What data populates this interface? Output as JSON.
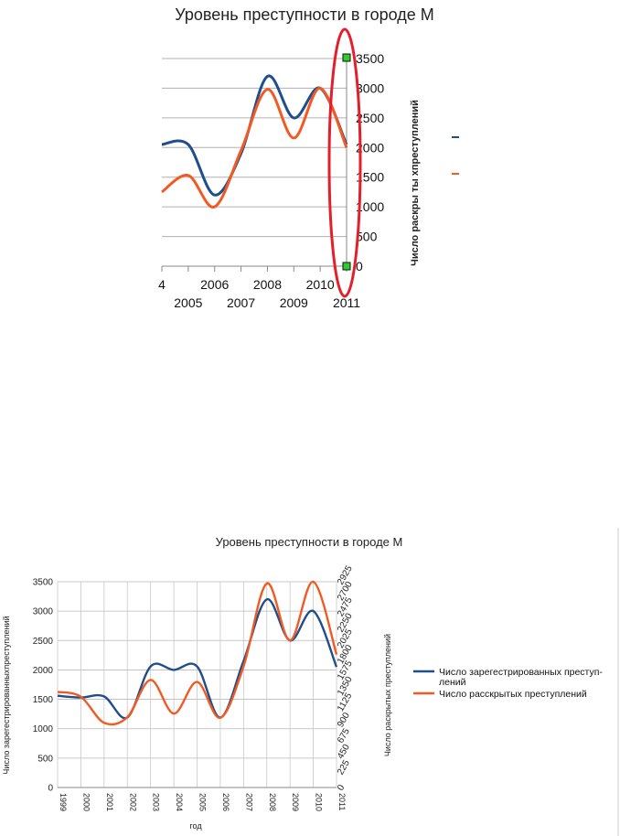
{
  "chart_data": [
    {
      "type": "line",
      "title": "Уровень преступности в городе М",
      "ylabel_right": "Число раскры ты хпреступлений",
      "ylim": [
        0,
        3500
      ],
      "yticks": [
        0,
        500,
        1000,
        1500,
        2000,
        2500,
        3000,
        3500
      ],
      "xticks_upper": [
        "4",
        "2006",
        "2008",
        "2010"
      ],
      "xticks_lower": [
        "2005",
        "2007",
        "2009",
        "2011"
      ],
      "series": [
        {
          "color": "#1f4e8c",
          "x": [
            2004,
            2005,
            2006,
            2007,
            2008,
            2009,
            2010,
            2011
          ],
          "values": [
            2050,
            2050,
            1200,
            1900,
            3200,
            2500,
            3000,
            2050
          ]
        },
        {
          "color": "#f25a22",
          "x": [
            2004,
            2005,
            2006,
            2007,
            2008,
            2009,
            2010,
            2011
          ],
          "values": [
            1250,
            1530,
            1000,
            1950,
            2980,
            2160,
            3000,
            2000
          ]
        }
      ],
      "annotation": "red ellipse highlighting 2011 axis with green markers at 3500 and 0"
    },
    {
      "type": "line",
      "title": "Уровень преступности в городе М",
      "xlabel": "год",
      "ylabel": "Число зарегестрированныхпреступлений",
      "ylabel_right": "Число раскрытых преступлений",
      "ylim": [
        0,
        3500
      ],
      "yticks": [
        0,
        500,
        1000,
        1500,
        2000,
        2500,
        3000,
        3500
      ],
      "ylim_right": [
        0,
        2925
      ],
      "yticks_right": [
        0,
        225,
        450,
        675,
        900,
        1125,
        1350,
        1575,
        1800,
        2025,
        2250,
        2475,
        2700,
        2925
      ],
      "categories": [
        "1999",
        "2000",
        "2001",
        "2002",
        "2003",
        "2004",
        "2005",
        "2006",
        "2007",
        "2008",
        "2009",
        "2010",
        "2011"
      ],
      "legend_position": "right",
      "series": [
        {
          "name_line1": "Число зарегестрированных преступ-",
          "name_line2": "лений",
          "color": "#1f4e8c",
          "axis": "left",
          "values": [
            1560,
            1530,
            1550,
            1190,
            2060,
            2000,
            2060,
            1190,
            2150,
            3200,
            2500,
            3000,
            2050
          ]
        },
        {
          "name": "Число расскрытых преступлений",
          "color": "#f25a22",
          "axis": "right",
          "values": [
            1360,
            1290,
            920,
            1000,
            1530,
            1050,
            1500,
            990,
            1720,
            2900,
            2090,
            2925,
            1890
          ]
        }
      ]
    }
  ]
}
